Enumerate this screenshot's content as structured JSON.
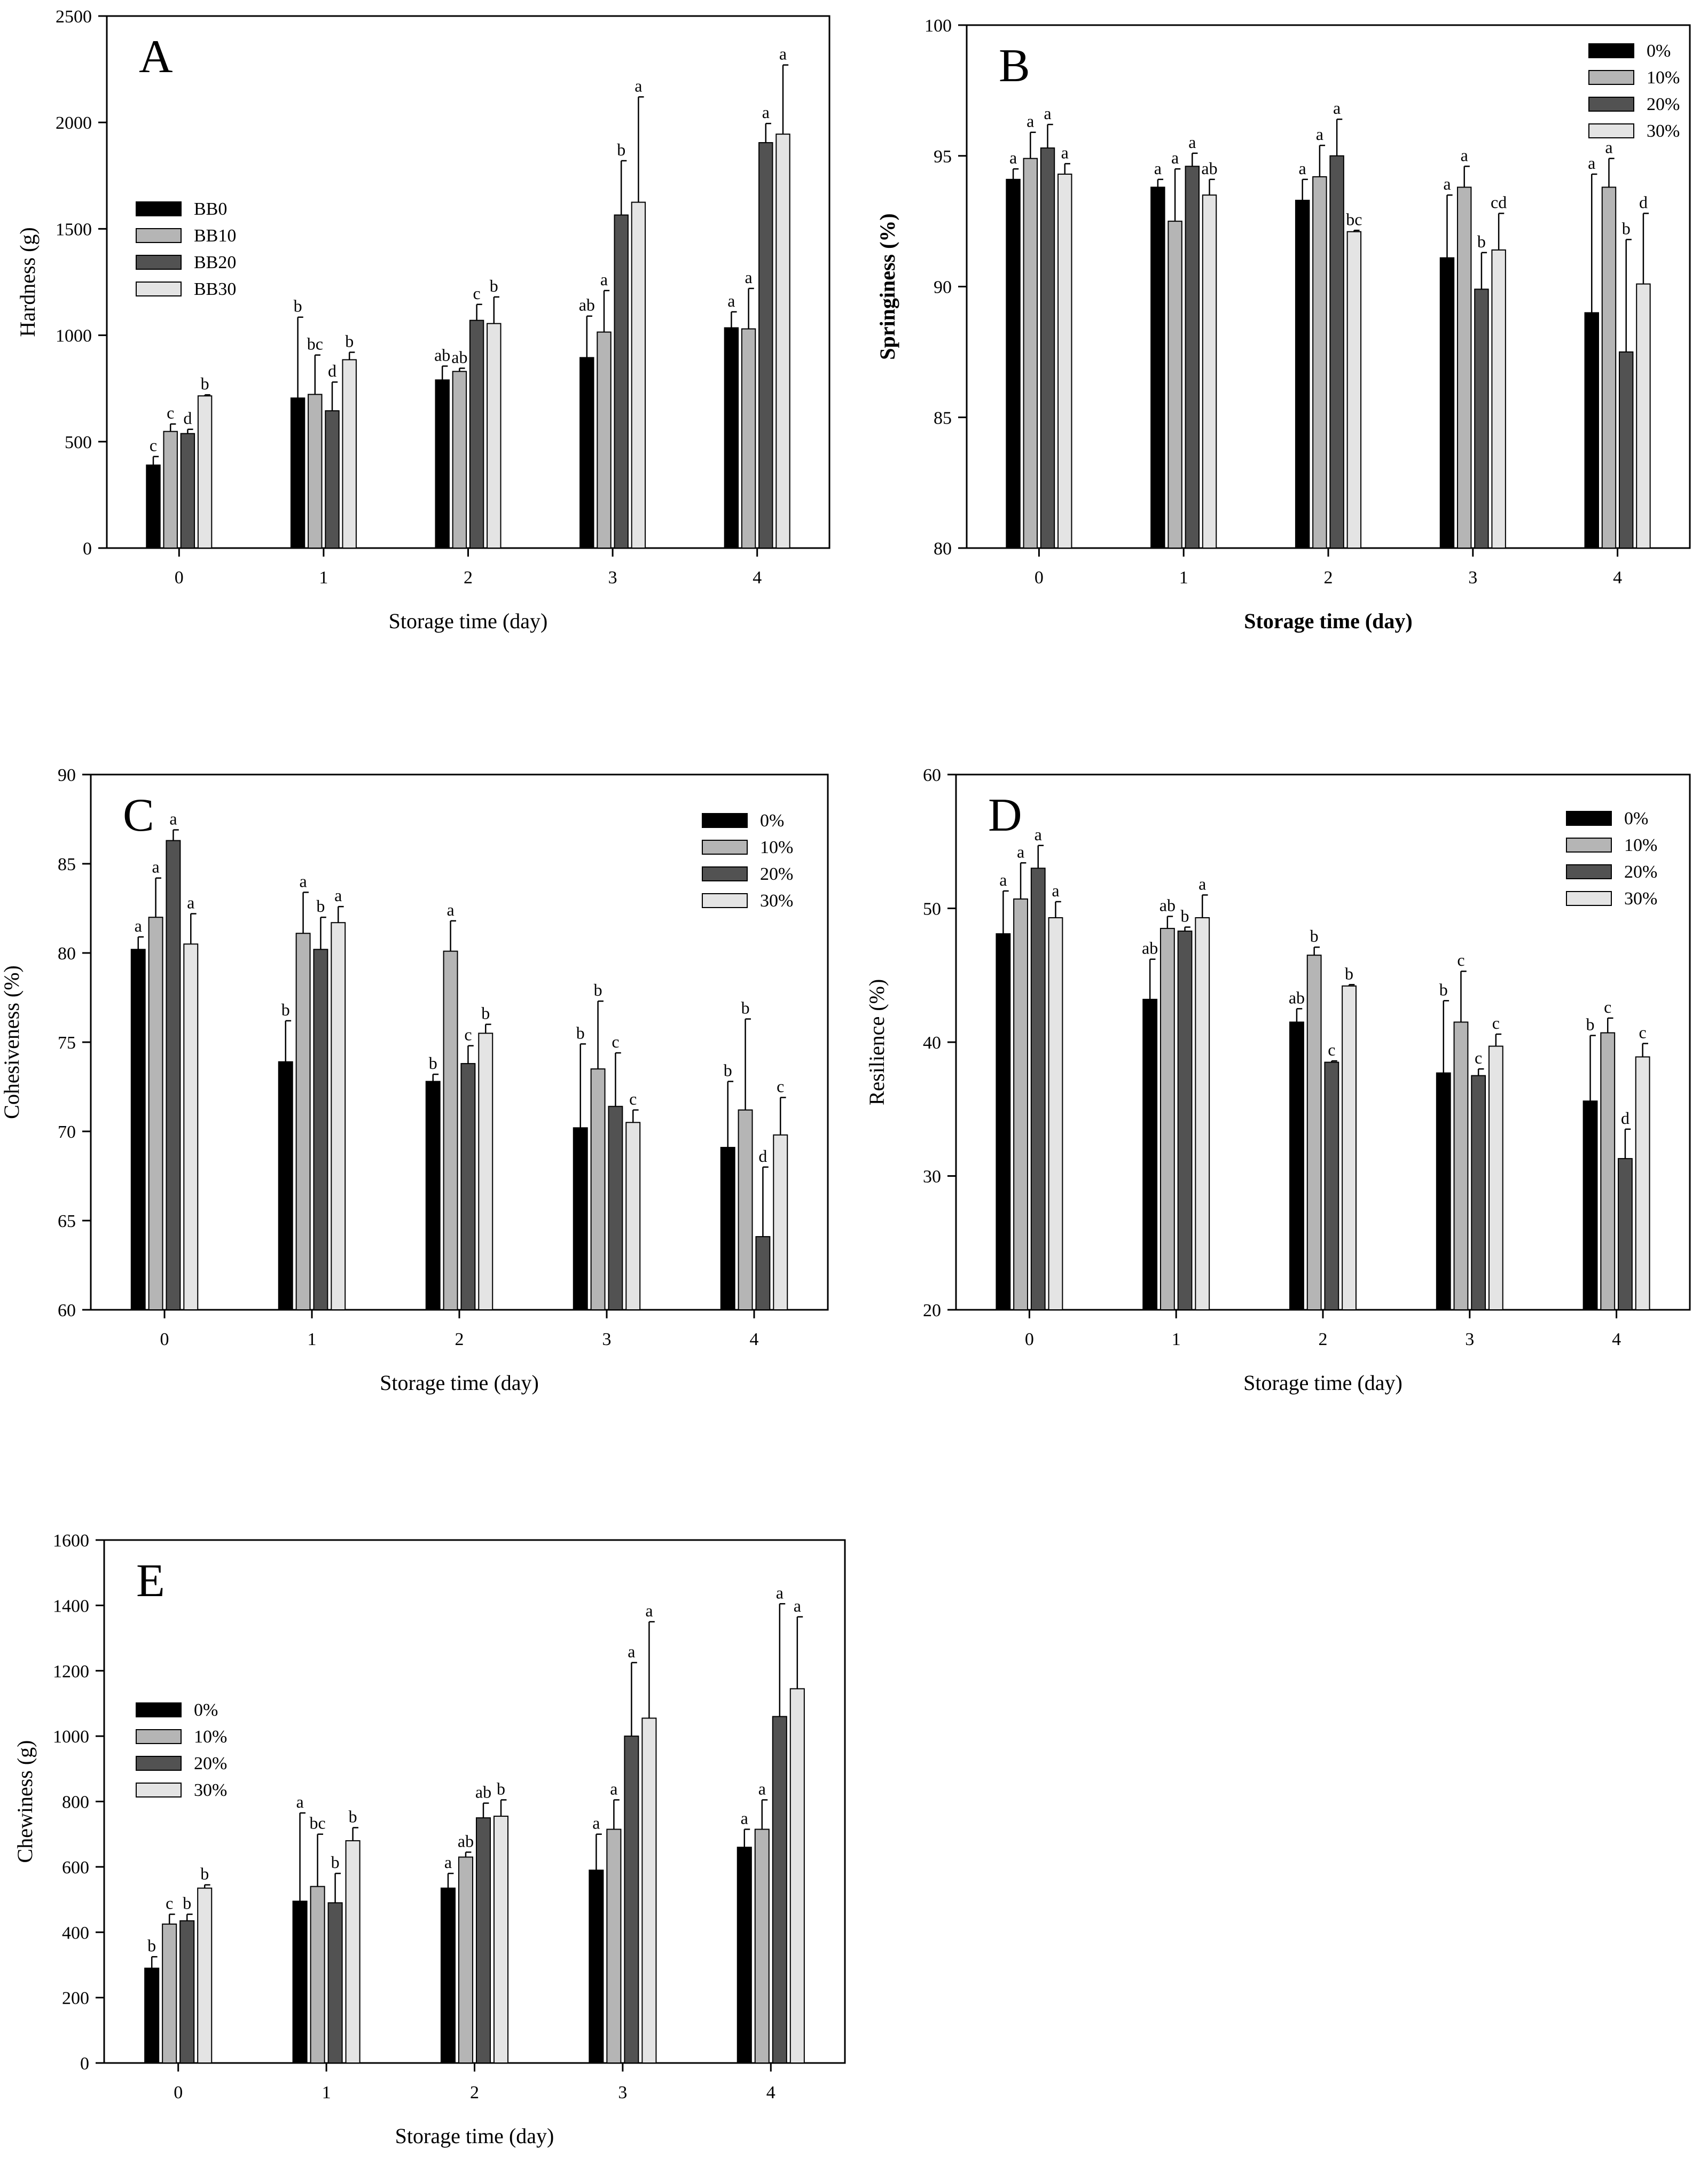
{
  "figure": {
    "colors": {
      "s0": "#000000",
      "s1": "#b5b5b5",
      "s2": "#525252",
      "s3": "#e4e4e4",
      "frame": "#000000"
    }
  },
  "chart_data": [
    {
      "id": "A",
      "panel_letter": "A",
      "type": "bar",
      "xlabel": "Storage time (day)",
      "ylabel": "Hardness (g)",
      "ylabel_bold": false,
      "xlabel_bold": false,
      "ylim": [
        0,
        2500
      ],
      "yticks": [
        0,
        500,
        1000,
        1500,
        2000,
        2500
      ],
      "categories": [
        "0",
        "1",
        "2",
        "3",
        "4"
      ],
      "legend": {
        "position": "mid-left"
      },
      "series": [
        {
          "name": "BB0",
          "values": [
            390,
            705,
            790,
            895,
            1035
          ],
          "errors": [
            40,
            380,
            65,
            195,
            75
          ],
          "letters": [
            "c",
            "b",
            "ab",
            "ab",
            "a"
          ]
        },
        {
          "name": "BB10",
          "values": [
            548,
            722,
            830,
            1015,
            1030
          ],
          "errors": [
            35,
            185,
            15,
            195,
            190
          ],
          "letters": [
            "c",
            "bc",
            "ab",
            "a",
            "a"
          ]
        },
        {
          "name": "BB20",
          "values": [
            538,
            645,
            1070,
            1565,
            1905
          ],
          "errors": [
            20,
            135,
            75,
            255,
            90
          ],
          "letters": [
            "d",
            "d",
            "c",
            "b",
            "a"
          ]
        },
        {
          "name": "BB30",
          "values": [
            715,
            885,
            1055,
            1625,
            1945
          ],
          "errors": [
            5,
            35,
            125,
            495,
            325
          ],
          "letters": [
            "b",
            "b",
            "b",
            "a",
            "a"
          ]
        }
      ]
    },
    {
      "id": "B",
      "panel_letter": "B",
      "type": "bar",
      "xlabel": "Storage time (day)",
      "ylabel": "Springiness (%)",
      "ylabel_bold": true,
      "xlabel_bold": true,
      "ylim": [
        80,
        100
      ],
      "yticks": [
        80,
        85,
        90,
        95,
        100
      ],
      "categories": [
        "0",
        "1",
        "2",
        "3",
        "4"
      ],
      "legend": {
        "position": "top-right"
      },
      "series": [
        {
          "name": "0%",
          "values": [
            94.1,
            93.8,
            93.3,
            91.1,
            89.0
          ],
          "errors": [
            0.4,
            0.3,
            0.8,
            2.4,
            5.3
          ],
          "letters": [
            "a",
            "a",
            "a",
            "a",
            "a"
          ]
        },
        {
          "name": "10%",
          "values": [
            94.9,
            92.5,
            94.2,
            93.8,
            93.8
          ],
          "errors": [
            1.0,
            2.0,
            1.2,
            0.8,
            1.1
          ],
          "letters": [
            "a",
            "a",
            "a",
            "a",
            "a"
          ]
        },
        {
          "name": "20%",
          "values": [
            95.3,
            94.6,
            95.0,
            89.9,
            87.5
          ],
          "errors": [
            0.9,
            0.5,
            1.4,
            1.4,
            4.3
          ],
          "letters": [
            "a",
            "a",
            "a",
            "b",
            "b"
          ]
        },
        {
          "name": "30%",
          "values": [
            94.3,
            93.5,
            92.1,
            91.4,
            90.1
          ],
          "errors": [
            0.4,
            0.6,
            0.05,
            1.4,
            2.7
          ],
          "letters": [
            "a",
            "ab",
            "bc",
            "cd",
            "d"
          ]
        }
      ]
    },
    {
      "id": "C",
      "panel_letter": "C",
      "type": "bar",
      "xlabel": "Storage time (day)",
      "ylabel": "Cohesiveness (%)",
      "ylabel_bold": false,
      "xlabel_bold": false,
      "ylim": [
        60,
        90
      ],
      "yticks": [
        60,
        65,
        70,
        75,
        80,
        85,
        90
      ],
      "categories": [
        "0",
        "1",
        "2",
        "3",
        "4"
      ],
      "legend": {
        "position": "top-right"
      },
      "series": [
        {
          "name": "0%",
          "values": [
            80.2,
            73.9,
            72.8,
            70.2,
            69.1
          ],
          "errors": [
            0.7,
            2.3,
            0.4,
            4.7,
            3.7
          ],
          "letters": [
            "a",
            "b",
            "b",
            "b",
            "b"
          ]
        },
        {
          "name": "10%",
          "values": [
            82.0,
            81.1,
            80.1,
            73.5,
            71.2
          ],
          "errors": [
            2.2,
            2.3,
            1.7,
            3.8,
            5.1
          ],
          "letters": [
            "a",
            "a",
            "a",
            "b",
            "b"
          ]
        },
        {
          "name": "20%",
          "values": [
            86.3,
            80.2,
            73.8,
            71.4,
            64.1
          ],
          "errors": [
            0.6,
            1.8,
            1.0,
            3.0,
            3.9
          ],
          "letters": [
            "a",
            "b",
            "c",
            "c",
            "d"
          ]
        },
        {
          "name": "30%",
          "values": [
            80.5,
            81.7,
            75.5,
            70.5,
            69.8
          ],
          "errors": [
            1.7,
            0.9,
            0.5,
            0.7,
            2.1
          ],
          "letters": [
            "a",
            "a",
            "b",
            "c",
            "c"
          ]
        }
      ]
    },
    {
      "id": "D",
      "panel_letter": "D",
      "type": "bar",
      "xlabel": "Storage time (day)",
      "ylabel": "Resilience (%)",
      "ylabel_bold": false,
      "xlabel_bold": false,
      "ylim": [
        20,
        60
      ],
      "yticks": [
        20,
        30,
        40,
        50,
        60
      ],
      "categories": [
        "0",
        "1",
        "2",
        "3",
        "4"
      ],
      "legend": {
        "position": "top-right"
      },
      "series": [
        {
          "name": "0%",
          "values": [
            48.1,
            43.2,
            41.5,
            37.7,
            35.6
          ],
          "errors": [
            3.2,
            3.0,
            1.0,
            5.4,
            4.9
          ],
          "letters": [
            "a",
            "ab",
            "ab",
            "b",
            "b"
          ]
        },
        {
          "name": "10%",
          "values": [
            50.7,
            48.5,
            46.5,
            41.5,
            40.7
          ],
          "errors": [
            2.7,
            0.9,
            0.6,
            3.8,
            1.1
          ],
          "letters": [
            "a",
            "ab",
            "b",
            "c",
            "c"
          ]
        },
        {
          "name": "20%",
          "values": [
            53.0,
            48.3,
            38.5,
            37.5,
            31.3
          ],
          "errors": [
            1.7,
            0.3,
            0.1,
            0.5,
            2.2
          ],
          "letters": [
            "a",
            "b",
            "c",
            "c",
            "d"
          ]
        },
        {
          "name": "30%",
          "values": [
            49.3,
            49.3,
            44.2,
            39.7,
            38.9
          ],
          "errors": [
            1.2,
            1.7,
            0.1,
            0.9,
            1.0
          ],
          "letters": [
            "a",
            "a",
            "b",
            "c",
            "c"
          ]
        }
      ]
    },
    {
      "id": "E",
      "panel_letter": "E",
      "type": "bar",
      "xlabel": "Storage time (day)",
      "ylabel": "Chewiness (g)",
      "ylabel_bold": false,
      "xlabel_bold": false,
      "ylim": [
        0,
        1600
      ],
      "yticks": [
        0,
        200,
        400,
        600,
        800,
        1000,
        1200,
        1400,
        1600
      ],
      "categories": [
        "0",
        "1",
        "2",
        "3",
        "4"
      ],
      "legend": {
        "position": "mid-left"
      },
      "series": [
        {
          "name": "0%",
          "values": [
            290,
            495,
            535,
            590,
            660
          ],
          "errors": [
            35,
            270,
            45,
            110,
            55
          ],
          "letters": [
            "b",
            "a",
            "a",
            "a",
            "a"
          ]
        },
        {
          "name": "10%",
          "values": [
            425,
            540,
            630,
            715,
            715
          ],
          "errors": [
            30,
            160,
            15,
            90,
            90
          ],
          "letters": [
            "c",
            "bc",
            "ab",
            "a",
            "a"
          ]
        },
        {
          "name": "20%",
          "values": [
            435,
            490,
            750,
            1000,
            1060
          ],
          "errors": [
            20,
            90,
            45,
            225,
            345
          ],
          "letters": [
            "b",
            "b",
            "ab",
            "a",
            "a"
          ]
        },
        {
          "name": "30%",
          "values": [
            535,
            680,
            755,
            1055,
            1145
          ],
          "errors": [
            10,
            40,
            50,
            295,
            220
          ],
          "letters": [
            "b",
            "b",
            "b",
            "a",
            "a"
          ]
        }
      ]
    }
  ]
}
